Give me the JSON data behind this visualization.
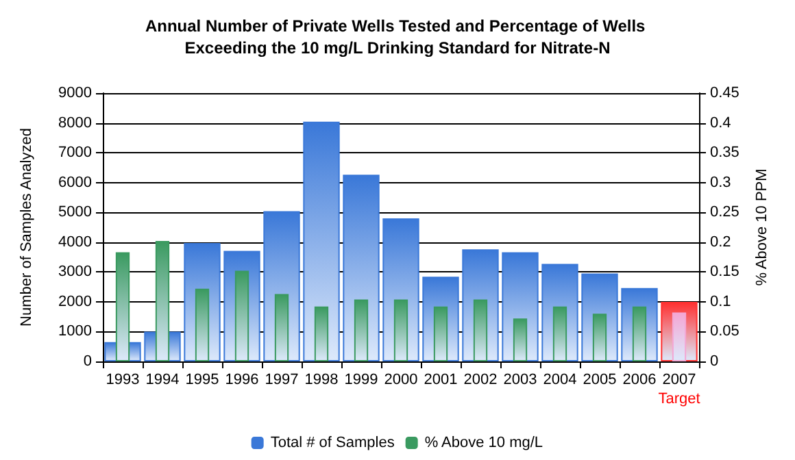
{
  "chart_data": {
    "type": "bar",
    "title": "Annual Number of Private Wells Tested and Percentage of Wells Exceeding the 10 mg/L Drinking Standard for Nitrate-N",
    "ylabel": "Number of Samples Analyzed",
    "y2label": "% Above 10 PPM",
    "categories": [
      "1993",
      "1994",
      "1995",
      "1996",
      "1997",
      "1998",
      "1999",
      "2000",
      "2001",
      "2002",
      "2003",
      "2004",
      "2005",
      "2006",
      "2007"
    ],
    "series": [
      {
        "name": "Total # of Samples",
        "color": "#3a78d8",
        "colors": [
          "#3a78d8",
          "#3a78d8",
          "#3a78d8",
          "#3a78d8",
          "#3a78d8",
          "#3a78d8",
          "#3a78d8",
          "#3a78d8",
          "#3a78d8",
          "#3a78d8",
          "#3a78d8",
          "#3a78d8",
          "#3a78d8",
          "#3a78d8",
          "#ff3030"
        ],
        "values": [
          650,
          1000,
          3970,
          3710,
          5040,
          8040,
          6260,
          4800,
          2840,
          3760,
          3660,
          3270,
          2950,
          2460,
          2000
        ]
      },
      {
        "name": "% Above 10 mg/L",
        "color": "#3a9a60",
        "colors": [
          "#3a9a60",
          "#3a9a60",
          "#3a9a60",
          "#3a9a60",
          "#3a9a60",
          "#3a9a60",
          "#3a9a60",
          "#3a9a60",
          "#3a9a60",
          "#3a9a60",
          "#3a9a60",
          "#3a9a60",
          "#3a9a60",
          "#3a9a60",
          "#f4a6d4"
        ],
        "axis": "y2",
        "values": [
          0.183,
          0.202,
          0.122,
          0.152,
          0.113,
          0.092,
          0.104,
          0.104,
          0.092,
          0.104,
          0.072,
          0.092,
          0.08,
          0.092,
          0.082
        ]
      }
    ],
    "ylim": [
      0,
      9000
    ],
    "yticks": [
      0,
      1000,
      2000,
      3000,
      4000,
      5000,
      6000,
      7000,
      8000,
      9000
    ],
    "y2lim": [
      0,
      0.45
    ],
    "y2ticks": [
      0,
      0.05,
      0.1,
      0.15,
      0.2,
      0.25,
      0.3,
      0.35,
      0.4,
      0.45
    ],
    "grid": true,
    "legend": "bottom",
    "annotations": [
      "Target"
    ]
  }
}
